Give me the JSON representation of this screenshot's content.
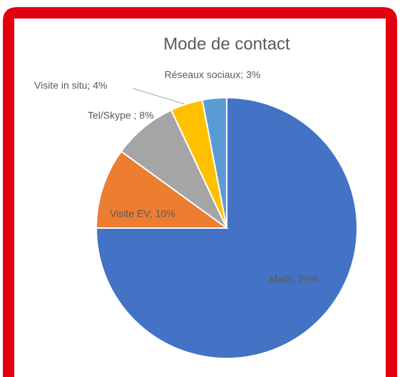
{
  "chart_data": {
    "type": "pie",
    "title": "Mode de contact",
    "categories": [
      "Mails",
      "Visite EV",
      "Tel/Skype",
      "Visite in situ",
      "Réseaux sociaux"
    ],
    "values": [
      75,
      10,
      8,
      4,
      3
    ],
    "value_labels": [
      "Mails; 75%",
      "Visite EV; 10%",
      "Tel/Skype ; 8%",
      "Visite in situ; 4%",
      "Réseaux sociaux; 3%"
    ],
    "colors": [
      "#4472c4",
      "#ed7d31",
      "#a5a5a5",
      "#ffc000",
      "#5b9bd5"
    ]
  }
}
